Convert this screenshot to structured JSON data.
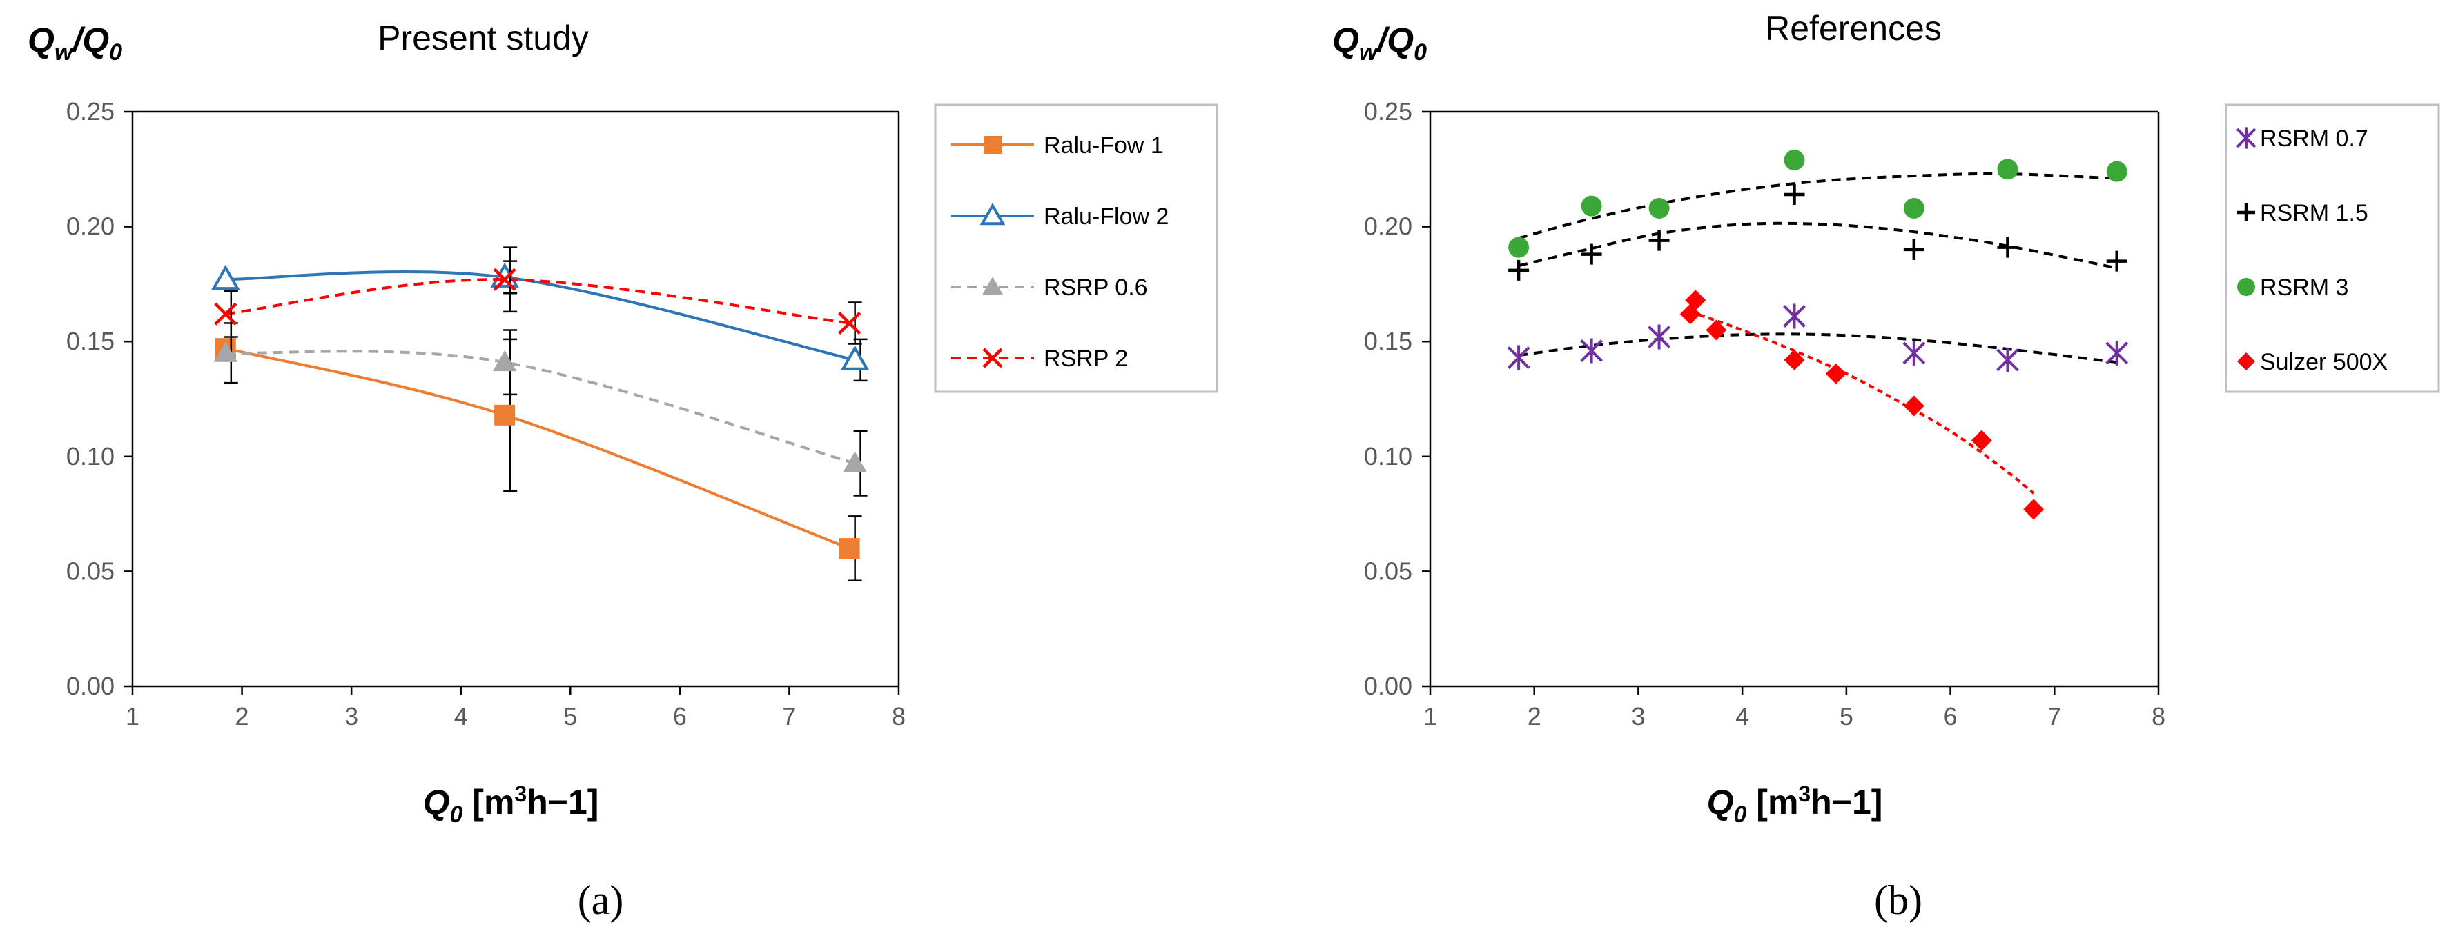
{
  "chart_data": [
    {
      "panel": "a",
      "caption": "(a)",
      "type": "line",
      "title": "Present study",
      "ylabel_main": "Q",
      "ylabel_sub1": "w",
      "ylabel_slash": "/Q",
      "ylabel_sub2": "0",
      "xlabel_main": "Q",
      "xlabel_sub": "0",
      "xlabel_unit_pre": " [m",
      "xlabel_sup": "3",
      "xlabel_unit_post": "h−1]",
      "xlim": [
        1,
        8
      ],
      "ylim": [
        0,
        0.25
      ],
      "xticks": [
        1,
        2,
        3,
        4,
        5,
        6,
        7,
        8
      ],
      "xtick_labels": [
        "1",
        "2",
        "3",
        "4",
        "5",
        "6",
        "7",
        "8"
      ],
      "yticks": [
        0,
        0.05,
        0.1,
        0.15,
        0.2,
        0.25
      ],
      "ytick_labels": [
        "0.00",
        "0.05",
        "0.10",
        "0.15",
        "0.20",
        "0.25"
      ],
      "series": [
        {
          "name": "Ralu-Fow 1",
          "color": "#ed7d31",
          "marker": "square",
          "line": "solid",
          "fill": true,
          "x": [
            1.85,
            4.4,
            7.55
          ],
          "y": [
            0.147,
            0.118,
            0.06
          ],
          "err": [
            0,
            0.033,
            0.014
          ]
        },
        {
          "name": "Ralu-Flow 2",
          "color": "#2e75b6",
          "marker": "triangle-open",
          "line": "solid",
          "fill": false,
          "x": [
            1.85,
            4.4,
            7.6
          ],
          "y": [
            0.177,
            0.178,
            0.142
          ],
          "err": [
            0,
            0.007,
            0.009
          ]
        },
        {
          "name": "RSRP 0.6",
          "color": "#a6a6a6",
          "marker": "triangle",
          "line": "dashed",
          "fill": true,
          "x": [
            1.85,
            4.4,
            7.6
          ],
          "y": [
            0.145,
            0.141,
            0.097
          ],
          "err": [
            0.013,
            0.014,
            0.014
          ]
        },
        {
          "name": "RSRP 2",
          "color": "#ff0000",
          "marker": "x",
          "line": "dashed",
          "fill": false,
          "x": [
            1.85,
            4.4,
            7.55
          ],
          "y": [
            0.162,
            0.177,
            0.158
          ],
          "err": [
            0.01,
            0.014,
            0.009
          ]
        }
      ]
    },
    {
      "panel": "b",
      "caption": "(b)",
      "type": "scatter",
      "title": "References",
      "ylabel_main": "Q",
      "ylabel_sub1": "w",
      "ylabel_slash": "/Q",
      "ylabel_sub2": "0",
      "xlabel_main": "Q",
      "xlabel_sub": "0",
      "xlabel_unit_pre": " [m",
      "xlabel_sup": "3",
      "xlabel_unit_post": "h−1]",
      "xlim": [
        1,
        8
      ],
      "ylim": [
        0,
        0.25
      ],
      "xticks": [
        1,
        2,
        3,
        4,
        5,
        6,
        7,
        8
      ],
      "xtick_labels": [
        "1",
        "2",
        "3",
        "4",
        "5",
        "6",
        "7",
        "8"
      ],
      "yticks": [
        0,
        0.05,
        0.1,
        0.15,
        0.2,
        0.25
      ],
      "ytick_labels": [
        "0.00",
        "0.05",
        "0.10",
        "0.15",
        "0.20",
        "0.25"
      ],
      "series": [
        {
          "name": "RSRM 0.7",
          "color": "#7030a0",
          "marker": "asterisk",
          "x": [
            1.85,
            2.55,
            3.2,
            4.5,
            5.65,
            6.55,
            7.6
          ],
          "y": [
            0.143,
            0.146,
            0.152,
            0.161,
            0.145,
            0.142,
            0.145
          ],
          "trend": {
            "x": [
              1.85,
              2.5,
              3.2,
              4,
              4.8,
              5.6,
              6.5,
              7.6
            ],
            "y": [
              0.144,
              0.148,
              0.151,
              0.153,
              0.153,
              0.151,
              0.147,
              0.141
            ]
          }
        },
        {
          "name": "RSRM 1.5",
          "color": "#000000",
          "marker": "plus",
          "x": [
            1.85,
            2.55,
            3.2,
            4.5,
            5.65,
            6.55,
            7.6
          ],
          "y": [
            0.181,
            0.188,
            0.194,
            0.214,
            0.19,
            0.191,
            0.185
          ],
          "trend": {
            "x": [
              1.85,
              2.5,
              3.2,
              4,
              4.8,
              5.6,
              6.5,
              7.6
            ],
            "y": [
              0.183,
              0.19,
              0.197,
              0.201,
              0.201,
              0.198,
              0.192,
              0.182
            ]
          }
        },
        {
          "name": "RSRM 3",
          "color": "#3aa836",
          "marker": "circle",
          "x": [
            1.85,
            2.55,
            3.2,
            4.5,
            5.65,
            6.55,
            7.6
          ],
          "y": [
            0.191,
            0.209,
            0.208,
            0.229,
            0.208,
            0.225,
            0.224
          ],
          "trend": {
            "x": [
              1.85,
              2.5,
              3.2,
              4,
              4.8,
              5.6,
              6.5,
              7.6
            ],
            "y": [
              0.195,
              0.203,
              0.21,
              0.216,
              0.22,
              0.222,
              0.223,
              0.221
            ]
          }
        },
        {
          "name": "Sulzer 500X",
          "color": "#ff0000",
          "marker": "diamond",
          "x": [
            3.5,
            3.55,
            3.75,
            4.5,
            4.9,
            5.65,
            6.3,
            6.8
          ],
          "y": [
            0.162,
            0.168,
            0.155,
            0.142,
            0.136,
            0.122,
            0.107,
            0.077
          ],
          "trend": {
            "x": [
              3.5,
              4,
              4.5,
              5,
              5.5,
              6,
              6.5,
              6.8
            ],
            "y": [
              0.163,
              0.155,
              0.146,
              0.136,
              0.124,
              0.111,
              0.095,
              0.084
            ]
          }
        }
      ]
    }
  ]
}
